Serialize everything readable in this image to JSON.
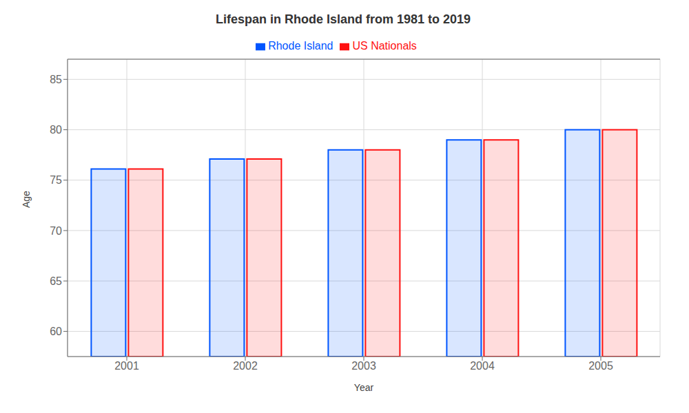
{
  "chart_data": {
    "type": "bar",
    "title": "Lifespan in Rhode Island from 1981 to 2019",
    "x_label": "Year",
    "y_label": "Age",
    "categories": [
      "2001",
      "2002",
      "2003",
      "2004",
      "2005"
    ],
    "series": [
      {
        "name": "Rhode Island",
        "color": "#0055ff",
        "values": [
          76.1,
          77.1,
          78.0,
          79.0,
          80.0
        ]
      },
      {
        "name": "US Nationals",
        "color": "#ff1111",
        "values": [
          76.1,
          77.1,
          78.0,
          79.0,
          80.0
        ]
      }
    ],
    "ylim": [
      57.5,
      87
    ],
    "yticks": [
      60,
      65,
      70,
      75,
      80,
      85
    ],
    "grid": true,
    "legend": "top"
  }
}
